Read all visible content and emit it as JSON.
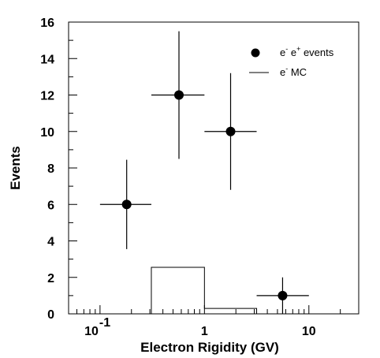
{
  "chart_data": {
    "type": "scatter",
    "title": "",
    "xlabel": "Electron Rigidity (GV)",
    "ylabel": "Events",
    "xscale": "log",
    "xlim": [
      0.05,
      30
    ],
    "ylim": [
      0,
      16
    ],
    "x_tick_labels": [
      "10",
      "-1",
      "1",
      "10"
    ],
    "y_ticks": [
      "0",
      "2",
      "4",
      "6",
      "8",
      "10",
      "12",
      "14",
      "16"
    ],
    "grid": false,
    "legend_position": "top-right",
    "series": [
      {
        "name": "e- e+ events",
        "type": "scatter-errorbar",
        "points": [
          {
            "x": 0.18,
            "x_low": 0.1,
            "x_high": 0.31,
            "y": 6,
            "y_low": 3.55,
            "y_high": 8.45
          },
          {
            "x": 0.57,
            "x_low": 0.31,
            "x_high": 1.0,
            "y": 12,
            "y_low": 8.5,
            "y_high": 15.5
          },
          {
            "x": 1.78,
            "x_low": 1.0,
            "x_high": 3.16,
            "y": 10,
            "y_low": 6.8,
            "y_high": 13.2
          },
          {
            "x": 5.6,
            "x_low": 3.16,
            "x_high": 10.0,
            "y": 1,
            "y_low": 0,
            "y_high": 2
          }
        ]
      },
      {
        "name": "e- MC",
        "type": "histogram",
        "bins": [
          {
            "x_low": 0.05,
            "x_high": 0.31,
            "y": 0
          },
          {
            "x_low": 0.31,
            "x_high": 1.0,
            "y": 2.55
          },
          {
            "x_low": 1.0,
            "x_high": 3.16,
            "y": 0.3
          },
          {
            "x_low": 3.16,
            "x_high": 30,
            "y": 0
          }
        ]
      }
    ]
  },
  "legend": {
    "events_label": {
      "sup1": "-",
      "mid": " e",
      "sup2": "+",
      "tail": "  events",
      "base": "e"
    },
    "mc_label": {
      "base": "e",
      "sup": "-",
      "tail": "  MC"
    }
  }
}
